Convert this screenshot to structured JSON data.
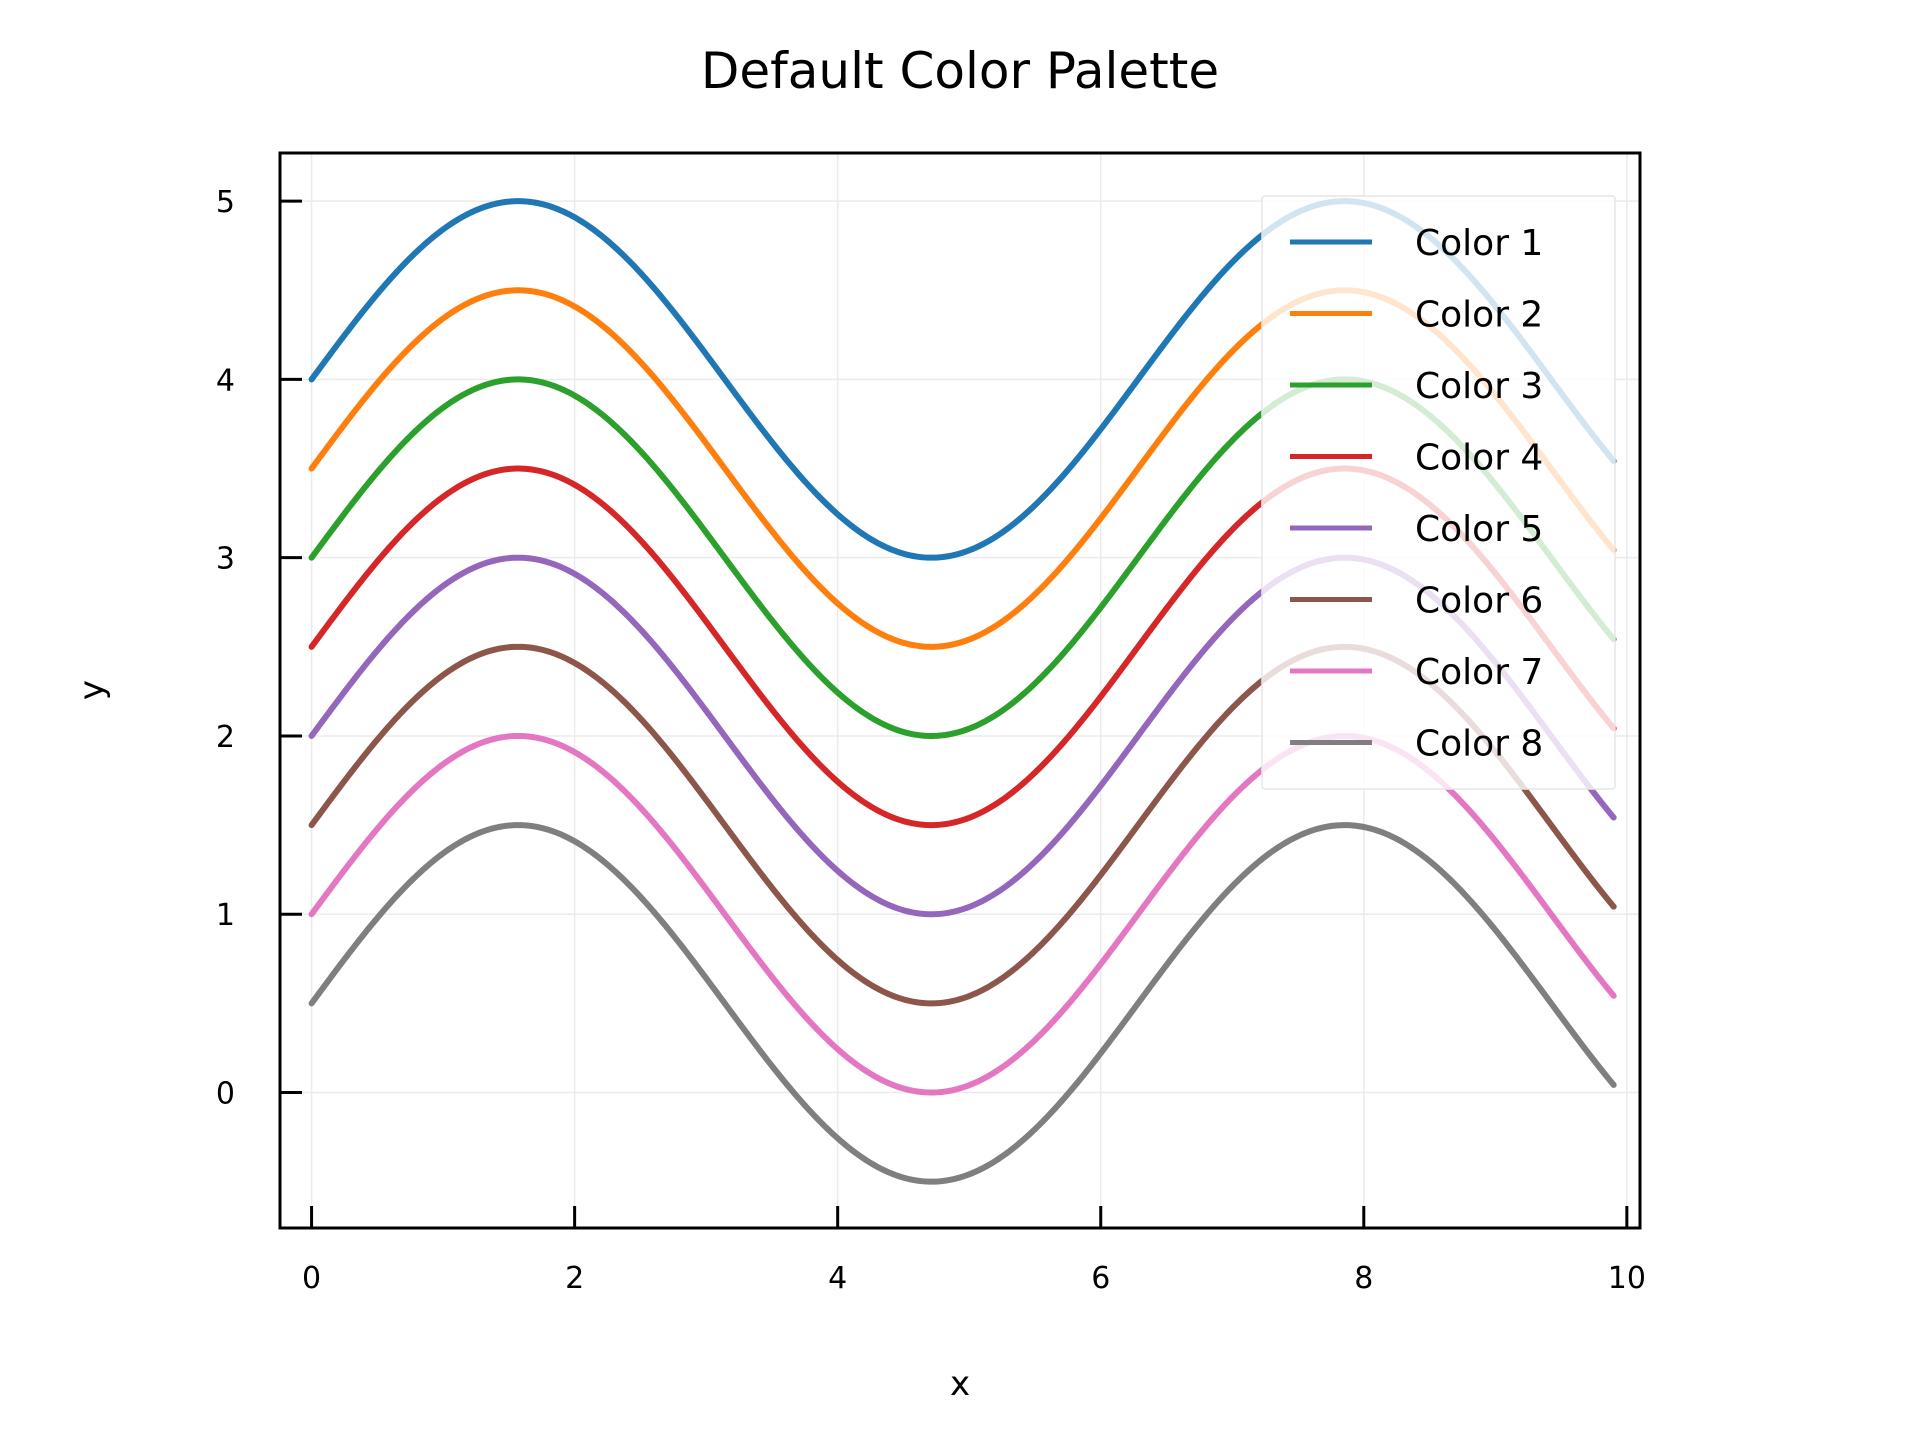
{
  "chart_data": {
    "type": "line",
    "title": "Default Color Palette",
    "xlabel": "x",
    "ylabel": "y",
    "xlim": [
      -0.24,
      10.1
    ],
    "ylim": [
      -0.76,
      5.27
    ],
    "xticks": [
      0,
      2,
      4,
      6,
      8,
      10
    ],
    "yticks": [
      0,
      1,
      2,
      3,
      4,
      5
    ],
    "grid": true,
    "legend_position": "top-right",
    "x_range": [
      0,
      9.9
    ],
    "x_step": 0.1,
    "series": [
      {
        "name": "Color 1",
        "color": "#1f77b4",
        "function": "sin(x) + 4.0"
      },
      {
        "name": "Color 2",
        "color": "#ff7f0e",
        "function": "sin(x) + 3.5"
      },
      {
        "name": "Color 3",
        "color": "#2ca02c",
        "function": "sin(x) + 3.0"
      },
      {
        "name": "Color 4",
        "color": "#d62728",
        "function": "sin(x) + 2.5"
      },
      {
        "name": "Color 5",
        "color": "#9467bd",
        "function": "sin(x) + 2.0"
      },
      {
        "name": "Color 6",
        "color": "#8c564b",
        "function": "sin(x) + 1.5"
      },
      {
        "name": "Color 7",
        "color": "#e377c2",
        "function": "sin(x) + 1.0"
      },
      {
        "name": "Color 8",
        "color": "#7f7f7f",
        "function": "sin(x) + 0.5"
      }
    ]
  }
}
